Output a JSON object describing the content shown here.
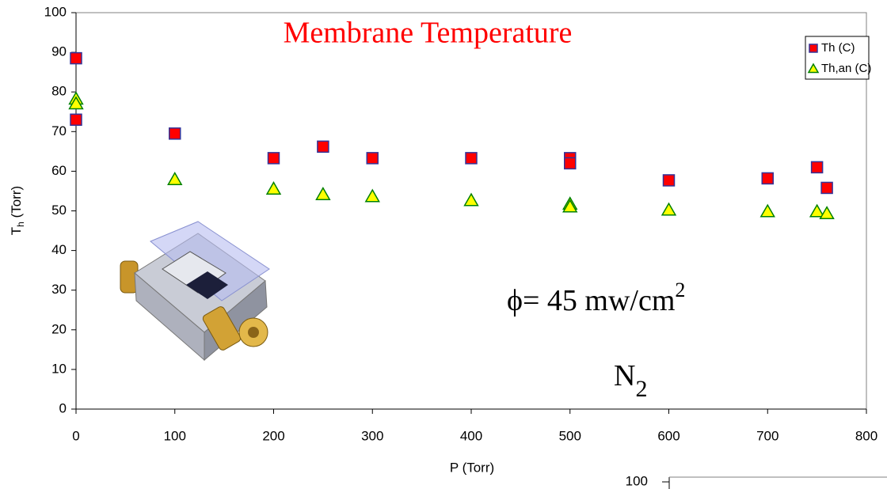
{
  "chart_data": {
    "type": "scatter",
    "title": "Membrane Temperature",
    "x_label": "P (Torr)",
    "y_label": {
      "main": "T",
      "sub": "h",
      "rest": " (Torr)"
    },
    "annotations": [
      {
        "main": "ϕ= 45 mw/cm",
        "sup": "2"
      },
      {
        "main": "N",
        "sub": "2"
      }
    ],
    "xlim": [
      0,
      800
    ],
    "xticks": [
      0,
      100,
      200,
      300,
      400,
      500,
      600,
      700,
      800
    ],
    "ylim": [
      0,
      100
    ],
    "yticks": [
      0,
      10,
      20,
      30,
      40,
      50,
      60,
      70,
      80,
      90,
      100
    ],
    "legend": "top-right",
    "series": [
      {
        "name": "Th (C)",
        "color": "#ff0000",
        "marker": "square",
        "x": [
          0,
          0,
          100,
          200,
          250,
          300,
          400,
          500,
          500,
          600,
          700,
          750,
          760
        ],
        "values": [
          88.5,
          73,
          69.5,
          63.3,
          66.2,
          63.3,
          63.3,
          63.3,
          62,
          57.7,
          58.2,
          61,
          55.8
        ]
      },
      {
        "name": "Th,an (C)",
        "color": "#ffff00",
        "marker": "triangle",
        "x": [
          0,
          0,
          100,
          200,
          250,
          300,
          400,
          500,
          500,
          600,
          700,
          750,
          760
        ],
        "values": [
          78.2,
          77,
          57.9,
          55.5,
          54.1,
          53.6,
          52.6,
          51.7,
          51,
          50.2,
          49.8,
          49.8,
          49.3
        ]
      }
    ]
  },
  "cropped_chart": {
    "ytick": "100"
  }
}
